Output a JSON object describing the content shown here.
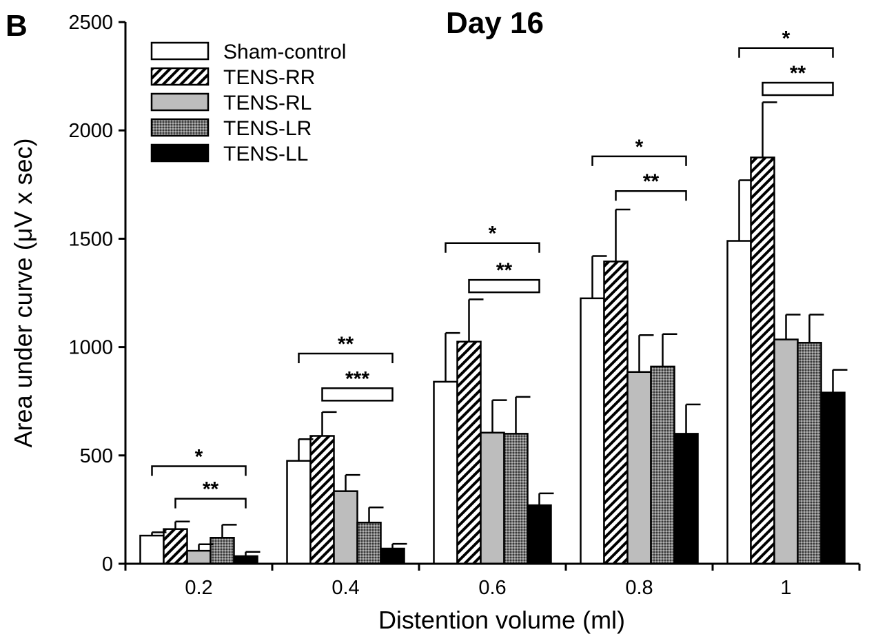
{
  "chart_data": {
    "type": "bar",
    "panel_label": "B",
    "title": "Day 16",
    "xlabel": "Distention volume (ml)",
    "ylabel": "Area under curve (μV x sec)",
    "ylim": [
      0,
      2500
    ],
    "yticks": [
      "0",
      "500",
      "1000",
      "1500",
      "2000",
      "2500"
    ],
    "categories": [
      "0.2",
      "0.4",
      "0.6",
      "0.8",
      "1"
    ],
    "legend_position": "top-left",
    "series": [
      {
        "name": "Sham-control",
        "pattern": "white",
        "values": [
          130,
          475,
          840,
          1225,
          1490
        ],
        "errors": [
          15,
          100,
          225,
          195,
          280
        ]
      },
      {
        "name": "TENS-RR",
        "pattern": "hatch",
        "values": [
          160,
          590,
          1025,
          1395,
          1875
        ],
        "errors": [
          35,
          110,
          195,
          240,
          255
        ]
      },
      {
        "name": "TENS-RL",
        "pattern": "gray",
        "values": [
          60,
          335,
          605,
          885,
          1035
        ],
        "errors": [
          30,
          75,
          150,
          170,
          115
        ]
      },
      {
        "name": "TENS-LR",
        "pattern": "dots",
        "values": [
          120,
          190,
          600,
          910,
          1020
        ],
        "errors": [
          60,
          70,
          170,
          150,
          130
        ]
      },
      {
        "name": "TENS-LL",
        "pattern": "black",
        "values": [
          35,
          70,
          270,
          600,
          790
        ],
        "errors": [
          20,
          22,
          55,
          135,
          105
        ]
      }
    ],
    "significance": [
      {
        "category": 0,
        "from_series": 0,
        "to_series": 4,
        "label": "*",
        "level": 450,
        "style": "bracket"
      },
      {
        "category": 0,
        "from_series": 1,
        "to_series": 4,
        "label": "**",
        "level": 300,
        "style": "bracket"
      },
      {
        "category": 1,
        "from_series": 0,
        "to_series": 4,
        "label": "**",
        "level": 970,
        "style": "bracket"
      },
      {
        "category": 1,
        "from_series": 1,
        "to_series": 4,
        "label": "***",
        "level": 810,
        "style": "box"
      },
      {
        "category": 2,
        "from_series": 0,
        "to_series": 4,
        "label": "*",
        "level": 1480,
        "style": "bracket"
      },
      {
        "category": 2,
        "from_series": 1,
        "to_series": 4,
        "label": "**",
        "level": 1310,
        "style": "box"
      },
      {
        "category": 3,
        "from_series": 0,
        "to_series": 4,
        "label": "*",
        "level": 1880,
        "style": "bracket"
      },
      {
        "category": 3,
        "from_series": 1,
        "to_series": 4,
        "label": "**",
        "level": 1720,
        "style": "bracket"
      },
      {
        "category": 4,
        "from_series": 0,
        "to_series": 4,
        "label": "*",
        "level": 2380,
        "style": "bracket"
      },
      {
        "category": 4,
        "from_series": 1,
        "to_series": 4,
        "label": "**",
        "level": 2220,
        "style": "box"
      }
    ]
  }
}
